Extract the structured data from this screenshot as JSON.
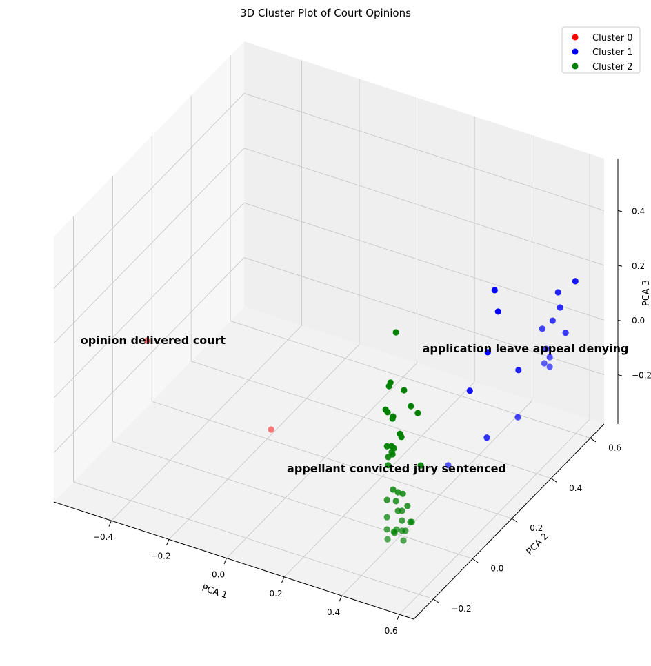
{
  "chart_data": {
    "type": "scatter3d",
    "title": "3D Cluster Plot of Court Opinions",
    "xlabel": "PCA 1",
    "ylabel": "PCA 2",
    "zlabel": "PCA 3",
    "xlim": [
      -0.6,
      0.65
    ],
    "ylim": [
      -0.3,
      0.67
    ],
    "zlim": [
      -0.38,
      0.59
    ],
    "xticks": [
      -0.4,
      -0.2,
      0.0,
      0.2,
      0.4,
      0.6
    ],
    "yticks": [
      -0.2,
      0.0,
      0.2,
      0.4,
      0.6
    ],
    "zticks": [
      -0.2,
      0.0,
      0.2,
      0.4
    ],
    "xtick_labels": [
      "−0.4",
      "−0.2",
      "0.0",
      "0.2",
      "0.4",
      "0.6"
    ],
    "ytick_labels": [
      "−0.2",
      "0.0",
      "0.2",
      "0.4",
      "0.6"
    ],
    "ztick_labels": [
      "−0.2",
      "0.0",
      "0.2",
      "0.4"
    ],
    "grid": true,
    "legend_position": "top-right",
    "series": [
      {
        "name": "Cluster 0",
        "color": "#ff0000",
        "points": [
          [
            -0.574,
            0.137,
            -0.103
          ],
          [
            -0.143,
            0.137,
            -0.28
          ]
        ]
      },
      {
        "name": "Cluster 1",
        "color": "#0000ff",
        "points": [
          [
            0.567,
            0.234,
            0.401
          ],
          [
            0.579,
            0.234,
            0.327
          ],
          [
            0.609,
            0.137,
            0.26
          ],
          [
            0.547,
            0.137,
            0.098
          ],
          [
            0.617,
            0.282,
            0.091
          ],
          [
            0.615,
            0.282,
            -0.082
          ],
          [
            0.606,
            0.137,
            -0.053
          ],
          [
            0.472,
            0.137,
            -0.2
          ],
          [
            0.649,
            0.525,
            0.248
          ],
          [
            0.589,
            0.525,
            0.187
          ],
          [
            0.596,
            0.525,
            0.134
          ],
          [
            0.57,
            0.525,
            0.077
          ],
          [
            0.534,
            0.525,
            0.035
          ],
          [
            0.615,
            0.525,
            0.048
          ],
          [
            0.548,
            0.525,
            -0.034
          ],
          [
            0.56,
            0.525,
            -0.06
          ],
          [
            0.541,
            0.525,
            -0.089
          ],
          [
            0.56,
            0.525,
            -0.095
          ]
        ]
      },
      {
        "name": "Cluster 2",
        "color": "#008000",
        "points": [
          [
            0.456,
            -0.106,
            0.459
          ],
          [
            0.437,
            -0.106,
            0.269
          ],
          [
            0.432,
            -0.106,
            0.254
          ],
          [
            0.484,
            -0.106,
            0.257
          ],
          [
            0.508,
            -0.106,
            0.207
          ],
          [
            0.532,
            -0.106,
            0.19
          ],
          [
            0.42,
            -0.106,
            0.164
          ],
          [
            0.427,
            -0.106,
            0.157
          ],
          [
            0.446,
            -0.106,
            0.148
          ],
          [
            0.444,
            -0.106,
            0.14
          ],
          [
            0.47,
            -0.106,
            0.093
          ],
          [
            0.475,
            -0.106,
            0.083
          ],
          [
            0.425,
            -0.106,
            0.032
          ],
          [
            0.441,
            -0.106,
            0.038
          ],
          [
            0.449,
            -0.106,
            0.033
          ],
          [
            0.441,
            -0.106,
            0.016
          ],
          [
            0.429,
            -0.106,
            -0.006
          ],
          [
            0.444,
            -0.106,
            0.009
          ],
          [
            0.429,
            -0.106,
            -0.036
          ],
          [
            0.542,
            -0.106,
            0.002
          ],
          [
            0.446,
            -0.106,
            -0.119
          ],
          [
            0.463,
            -0.106,
            -0.123
          ],
          [
            0.48,
            -0.106,
            -0.123
          ],
          [
            0.425,
            -0.106,
            -0.164
          ],
          [
            0.456,
            -0.106,
            -0.158
          ],
          [
            0.463,
            -0.106,
            -0.191
          ],
          [
            0.477,
            -0.106,
            -0.186
          ],
          [
            0.496,
            -0.106,
            -0.162
          ],
          [
            0.425,
            -0.106,
            -0.227
          ],
          [
            0.477,
            -0.106,
            -0.222
          ],
          [
            0.511,
            -0.106,
            -0.215
          ],
          [
            0.477,
            -0.106,
            -0.259
          ],
          [
            0.425,
            -0.106,
            -0.272
          ],
          [
            0.458,
            -0.106,
            -0.261
          ],
          [
            0.489,
            -0.106,
            -0.255
          ],
          [
            0.451,
            -0.106,
            -0.276
          ],
          [
            0.427,
            -0.106,
            -0.307
          ],
          [
            0.482,
            -0.106,
            -0.293
          ],
          [
            0.506,
            -0.106,
            -0.217
          ],
          [
            0.449,
            -0.106,
            -0.272
          ]
        ]
      }
    ],
    "annotations": [
      {
        "text": "opinion delivered court",
        "at": [
          -0.553,
          0.137,
          -0.093
        ]
      },
      {
        "text": "application leave appeal denying",
        "at": [
          0.476,
          0.525,
          -0.056
        ]
      },
      {
        "text": "appellant convicted jury sentenced",
        "at": [
          0.458,
          -0.106,
          -0.037
        ]
      }
    ]
  }
}
